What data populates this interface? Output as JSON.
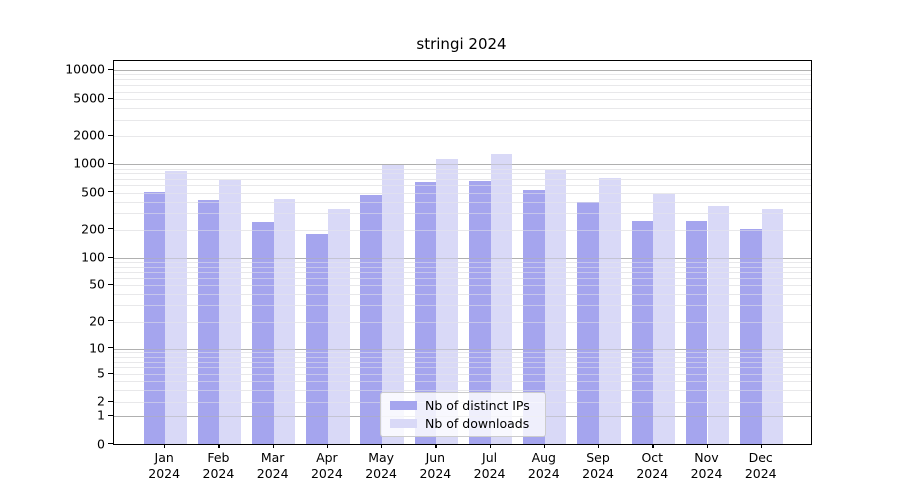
{
  "chart_data": {
    "type": "bar",
    "title": "stringi 2024",
    "categories": [
      "Jan",
      "Feb",
      "Mar",
      "Apr",
      "May",
      "Jun",
      "Jul",
      "Aug",
      "Sep",
      "Oct",
      "Nov",
      "Dec"
    ],
    "x_tick_second_line": "2024",
    "series": [
      {
        "name": "Nb of distinct IPs",
        "color": "#a5a5ee",
        "values": [
          505,
          418,
          240,
          178,
          470,
          655,
          670,
          530,
          400,
          250,
          245,
          205
        ]
      },
      {
        "name": "Nb of downloads",
        "color": "#d9d9f7",
        "values": [
          850,
          675,
          425,
          333,
          990,
          1130,
          1300,
          865,
          715,
          485,
          358,
          337
        ]
      }
    ],
    "yaxis": {
      "scale": "symlog",
      "ticks": [
        0,
        1,
        2,
        5,
        10,
        20,
        50,
        100,
        200,
        500,
        1000,
        2000,
        5000,
        10000
      ],
      "range": [
        0,
        12500
      ]
    },
    "grid": {
      "major_color": "#b0b0b0",
      "minor_color": "#e8e8ea",
      "minor_multiples": [
        3,
        4,
        6,
        7,
        8,
        9
      ]
    },
    "legend": {
      "position": "lower center",
      "entries": [
        "Nb of distinct IPs",
        "Nb of downloads"
      ]
    }
  }
}
